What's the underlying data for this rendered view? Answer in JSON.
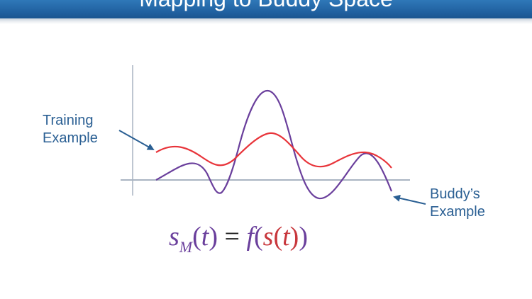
{
  "slide": {
    "title": "Mapping to Buddy Space"
  },
  "labels": {
    "training_line1": "Training",
    "training_line2": "Example",
    "buddy_line1": "Buddy’s",
    "buddy_line2": "Example"
  },
  "equation": {
    "s": "s",
    "sub": "M",
    "paren_open": "(",
    "t": "t",
    "paren_close": ")",
    "equals": " = ",
    "f": "f",
    "inner_paren_open": "(",
    "inner_s": "s",
    "inner_lp": "(",
    "inner_t": "t",
    "inner_rp": ")",
    "outer_rp": ")"
  },
  "colors": {
    "title_bar": "#1f5f9e",
    "training_curve": "#e8343a",
    "buddy_curve": "#6a3f9c",
    "axis": "#a9b4c2",
    "label_text": "#2a5f93"
  }
}
